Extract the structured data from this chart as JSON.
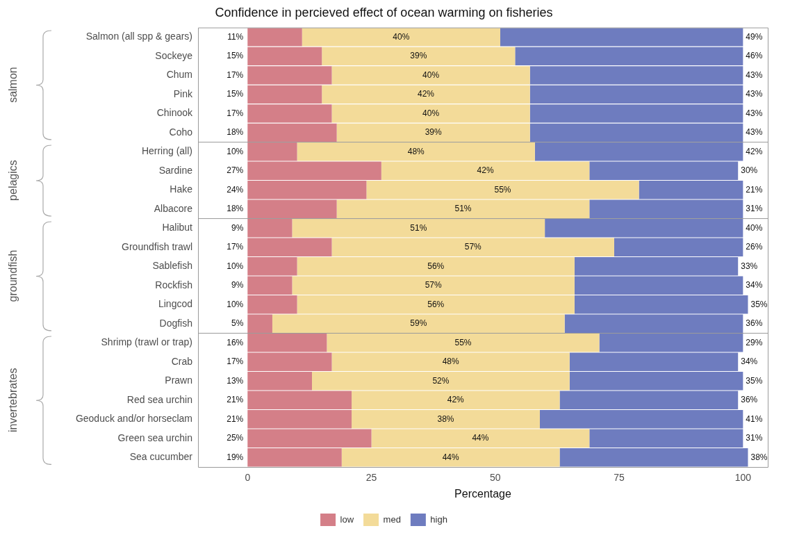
{
  "chart_data": {
    "type": "bar",
    "orientation": "horizontal",
    "stacked": true,
    "title": "Confidence in percieved effect of ocean warming on fisheries",
    "xlabel": "Percentage",
    "categories": [
      "Salmon (all spp & gears)",
      "Sockeye",
      "Chum",
      "Pink",
      "Chinook",
      "Coho",
      "Herring (all)",
      "Sardine",
      "Hake",
      "Albacore",
      "Halibut",
      "Groundfish trawl",
      "Sablefish",
      "Rockfish",
      "Lingcod",
      "Dogfish",
      "Shrimp (trawl or trap)",
      "Crab",
      "Prawn",
      "Red sea urchin",
      "Geoduck and/or horseclam",
      "Green sea urchin",
      "Sea cucumber"
    ],
    "series": [
      {
        "name": "low",
        "color": "#d47f88",
        "values": [
          11,
          15,
          17,
          15,
          17,
          18,
          10,
          27,
          24,
          18,
          9,
          17,
          10,
          9,
          10,
          5,
          16,
          17,
          13,
          21,
          21,
          25,
          19
        ],
        "value_labels": [
          "11%",
          "15%",
          "17%",
          "15%",
          "17%",
          "18%",
          "10%",
          "27%",
          "24%",
          "18%",
          "9%",
          "17%",
          "10%",
          "9%",
          "10%",
          "5%",
          "16%",
          "17%",
          "13%",
          "21%",
          "21%",
          "25%",
          "19%"
        ]
      },
      {
        "name": "med",
        "color": "#f3db99",
        "values": [
          40,
          39,
          40,
          42,
          40,
          39,
          48,
          42,
          55,
          51,
          51,
          57,
          56,
          57,
          56,
          59,
          55,
          48,
          52,
          42,
          38,
          44,
          44
        ],
        "value_labels": [
          "40%",
          "39%",
          "40%",
          "42%",
          "40%",
          "39%",
          "48%",
          "42%",
          "55%",
          "51%",
          "51%",
          "57%",
          "56%",
          "57%",
          "56%",
          "59%",
          "55%",
          "48%",
          "52%",
          "42%",
          "38%",
          "44%",
          "44%"
        ]
      },
      {
        "name": "high",
        "color": "#6e7cbf",
        "values": [
          49,
          46,
          43,
          43,
          43,
          43,
          42,
          30,
          21,
          31,
          40,
          26,
          33,
          34,
          35,
          36,
          29,
          34,
          35,
          36,
          41,
          31,
          38
        ],
        "value_labels": [
          "49%",
          "46%",
          "43%",
          "43%",
          "43%",
          "43%",
          "42%",
          "30%",
          "21%",
          "31%",
          "40%",
          "26%",
          "33%",
          "34%",
          "35%",
          "36%",
          "29%",
          "34%",
          "35%",
          "36%",
          "41%",
          "31%",
          "38%"
        ]
      }
    ],
    "xlim": [
      -10,
      105
    ],
    "xticks": [
      0,
      25,
      50,
      75,
      100
    ],
    "grid": false,
    "legend": "bottom",
    "annotations": [
      "salmon",
      "pelagics",
      "groundfish",
      "invertebrates"
    ]
  }
}
